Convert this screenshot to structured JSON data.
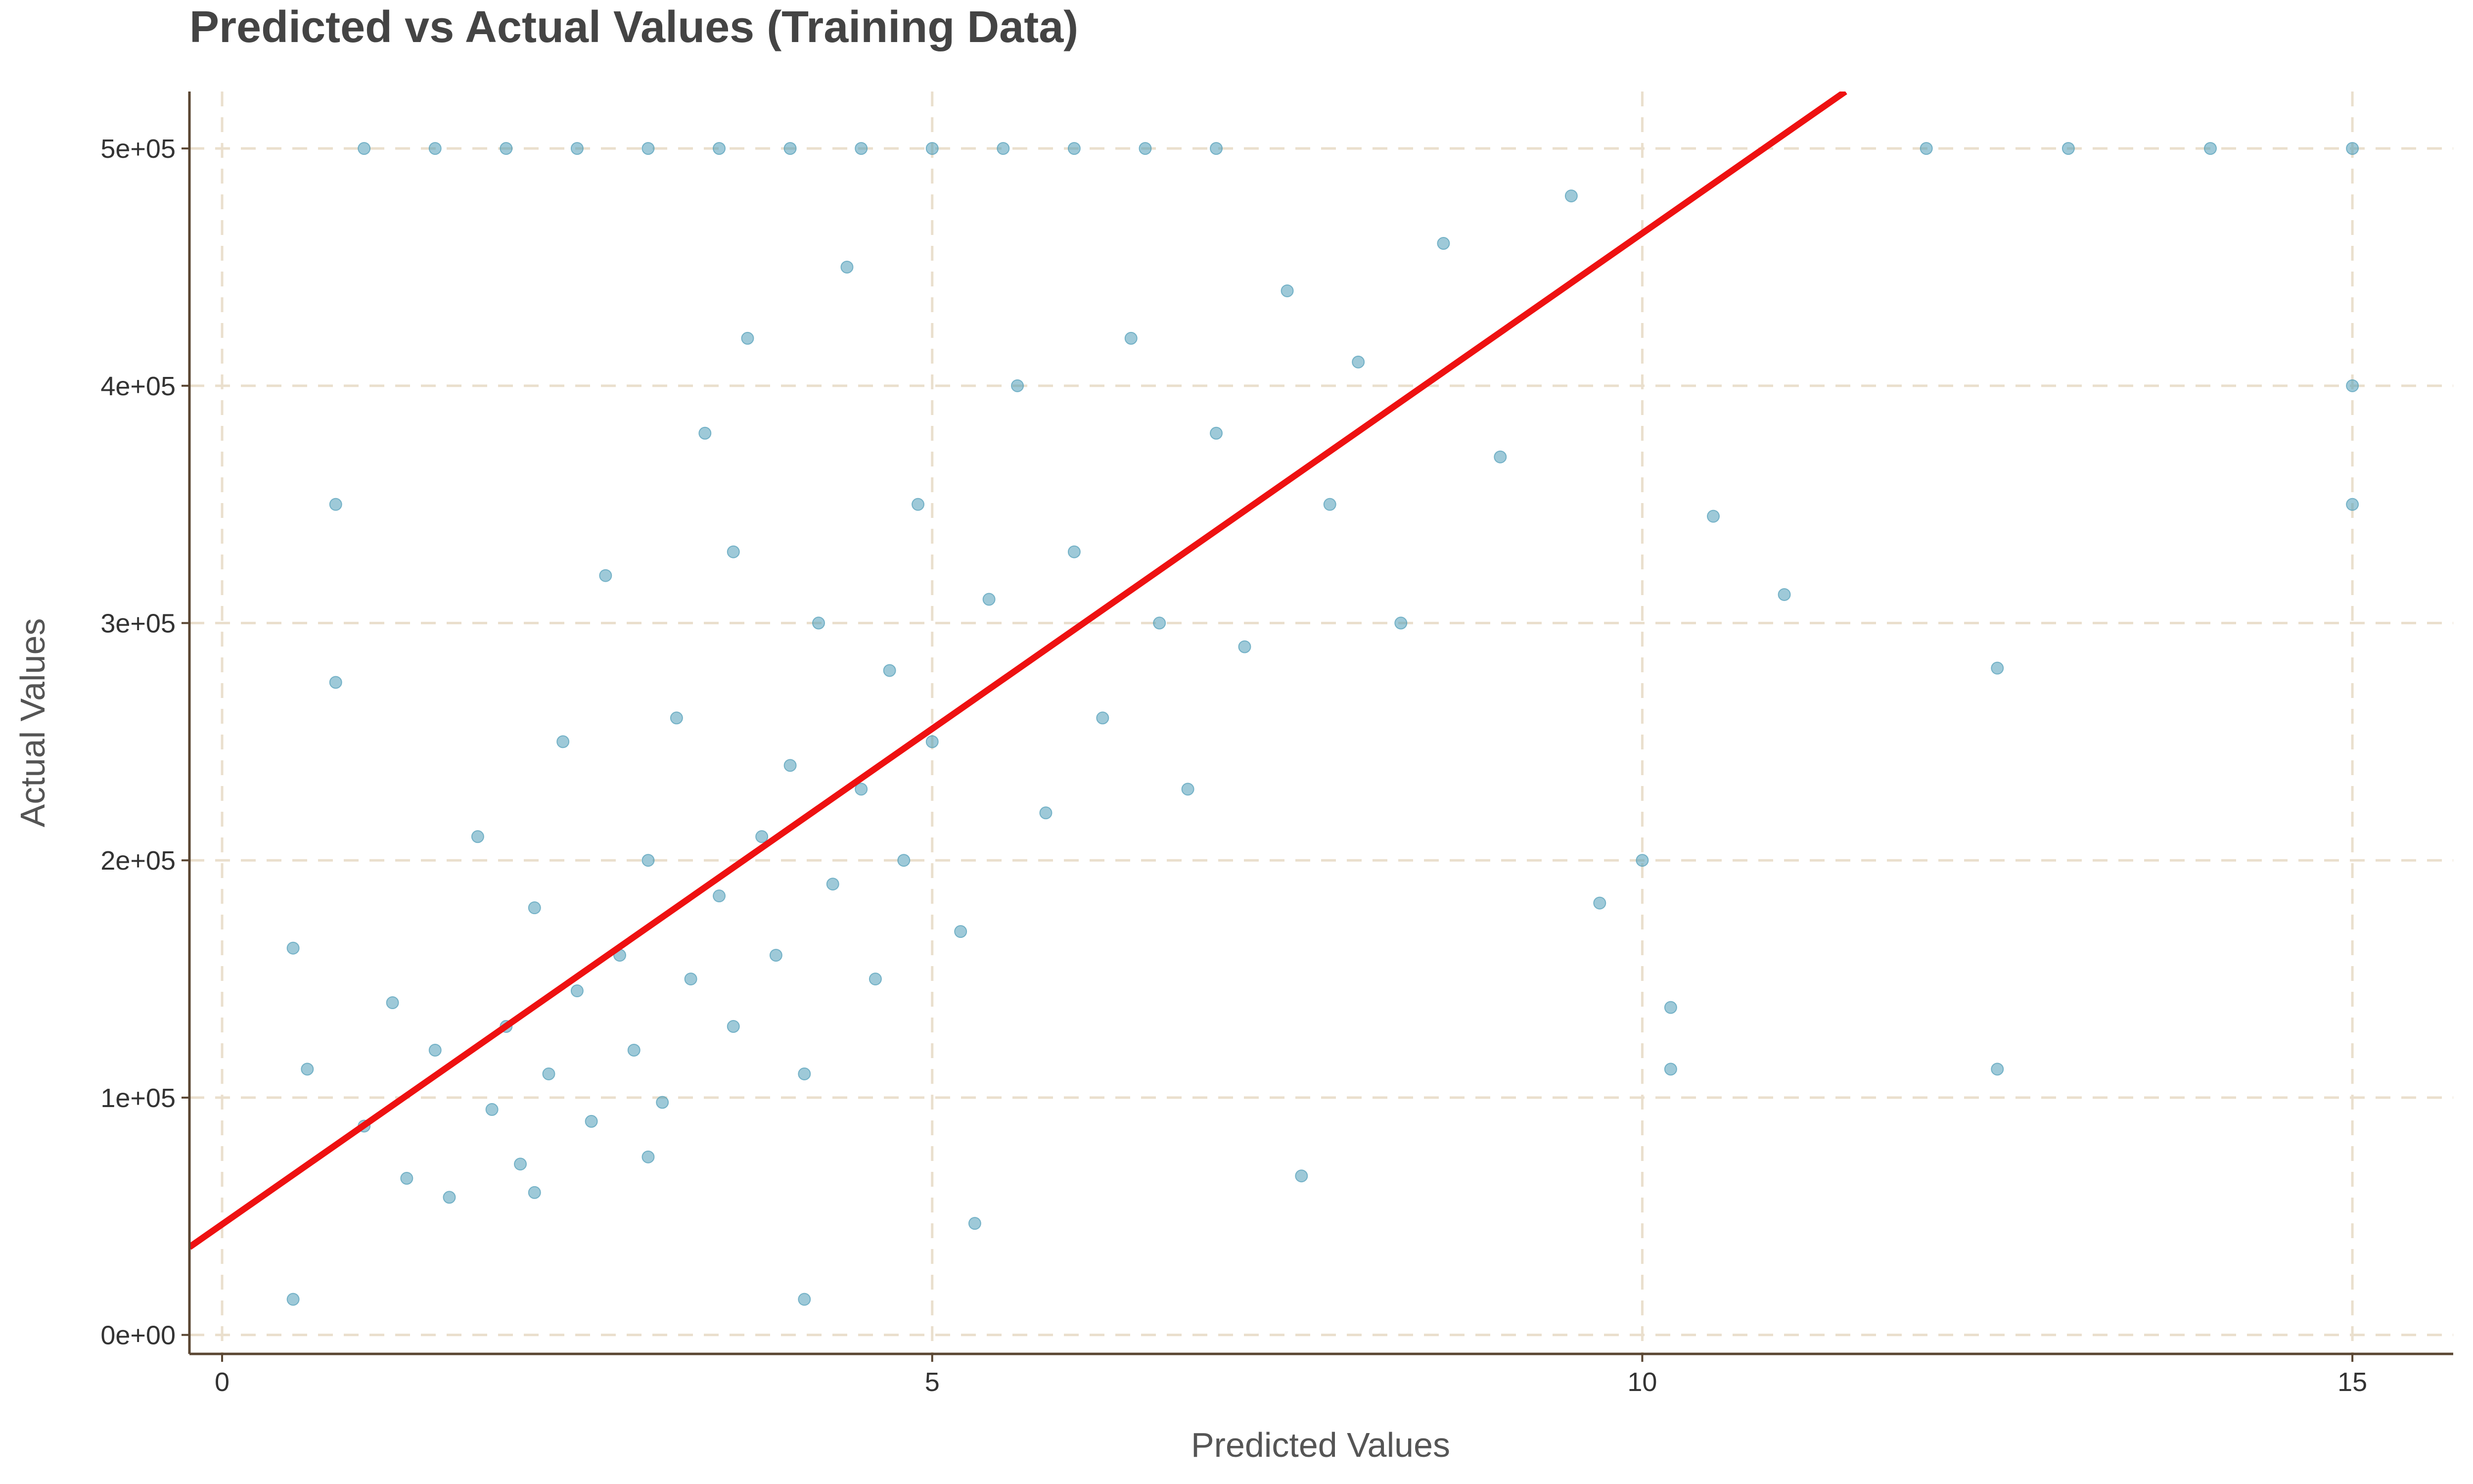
{
  "chart_data": {
    "type": "scatter",
    "title": "Predicted vs Actual Values (Training Data)",
    "xlabel": "Predicted Values",
    "ylabel": "Actual Values",
    "xlim": [
      -0.23,
      15.71
    ],
    "ylim": [
      -8000,
      524000
    ],
    "xticks": [
      0,
      5,
      10,
      15
    ],
    "yticks": [
      {
        "value": 0,
        "label": "0e+00"
      },
      {
        "value": 100000,
        "label": "1e+05"
      },
      {
        "value": 200000,
        "label": "2e+05"
      },
      {
        "value": 300000,
        "label": "3e+05"
      },
      {
        "value": 400000,
        "label": "4e+05"
      },
      {
        "value": 500000,
        "label": "5e+05"
      }
    ],
    "grid": true,
    "color": "#4f9db8",
    "x": [
      0.5,
      0.6,
      0.8,
      1.0,
      1.2,
      1.3,
      1.5,
      1.6,
      1.8,
      1.9,
      2.0,
      2.1,
      2.2,
      2.3,
      2.4,
      2.5,
      2.6,
      2.7,
      2.8,
      2.9,
      3.0,
      3.1,
      3.2,
      3.3,
      3.4,
      3.5,
      3.6,
      3.7,
      3.8,
      3.9,
      4.0,
      4.1,
      4.2,
      4.3,
      4.4,
      4.5,
      4.6,
      4.7,
      4.8,
      4.9,
      5.0,
      5.2,
      5.4,
      5.6,
      5.8,
      6.0,
      6.2,
      6.4,
      6.6,
      6.8,
      7.0,
      7.2,
      7.5,
      7.8,
      8.0,
      8.3,
      8.6,
      9.0,
      9.5,
      10.0,
      10.2,
      10.5,
      11.0,
      12.0,
      13.0,
      14.0,
      15.0,
      15.0,
      15.0,
      12.5,
      12.5,
      10.2,
      9.7,
      7.6,
      5.3,
      4.1,
      1.0,
      1.5,
      2.0,
      2.5,
      3.0,
      3.5,
      4.0,
      4.5,
      5.0,
      5.5,
      6.0,
      6.5,
      7.0,
      0.5,
      0.8,
      2.2,
      3.0,
      3.6
    ],
    "y": [
      163000,
      112000,
      350000,
      88000,
      140000,
      66000,
      120000,
      58000,
      210000,
      95000,
      130000,
      72000,
      180000,
      110000,
      250000,
      145000,
      90000,
      320000,
      160000,
      120000,
      200000,
      98000,
      260000,
      150000,
      380000,
      185000,
      130000,
      420000,
      210000,
      160000,
      240000,
      110000,
      300000,
      190000,
      450000,
      230000,
      150000,
      280000,
      200000,
      350000,
      250000,
      170000,
      310000,
      400000,
      220000,
      330000,
      260000,
      420000,
      300000,
      230000,
      380000,
      290000,
      440000,
      350000,
      410000,
      300000,
      460000,
      370000,
      480000,
      200000,
      138000,
      345000,
      312000,
      500000,
      500000,
      500000,
      500000,
      400000,
      350000,
      281000,
      112000,
      112000,
      182000,
      67000,
      47000,
      15000,
      500000,
      500000,
      500000,
      500000,
      500000,
      500000,
      500000,
      500000,
      500000,
      500000,
      500000,
      500000,
      500000,
      15000,
      275000,
      60000,
      75000,
      330000
    ],
    "fit_line": {
      "x": [
        -0.23,
        11.43
      ],
      "y": [
        37000,
        524000
      ],
      "color": "#ee1111"
    }
  }
}
